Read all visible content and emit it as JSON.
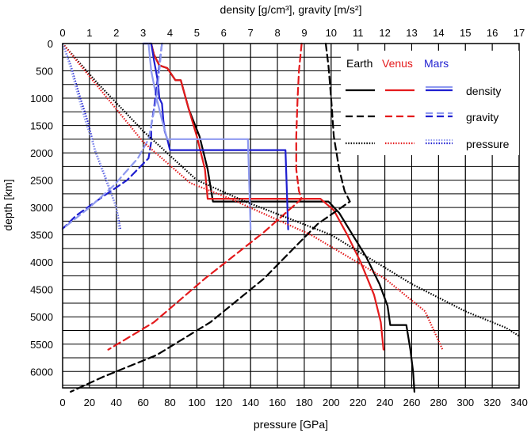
{
  "chart_data": {
    "type": "line",
    "top_axis_label": "density [g/cm³], gravity [m/s²]",
    "bottom_axis_label": "pressure [GPa]",
    "left_axis_label": "depth [km]",
    "top_axis": {
      "range": [
        0,
        17
      ],
      "ticks": [
        "0",
        "1",
        "2",
        "3",
        "4",
        "5",
        "6",
        "7",
        "8",
        "9",
        "10",
        "11",
        "12",
        "13",
        "14",
        "15",
        "16",
        "17"
      ]
    },
    "bottom_axis": {
      "range": [
        0,
        340
      ],
      "ticks": [
        "0",
        "20",
        "40",
        "60",
        "80",
        "100",
        "120",
        "140",
        "160",
        "180",
        "200",
        "220",
        "240",
        "260",
        "280",
        "300",
        "320",
        "340"
      ]
    },
    "left_axis": {
      "range": [
        0,
        6300
      ],
      "inverted": true,
      "ticks": [
        "0",
        "500",
        "1000",
        "1500",
        "2000",
        "2500",
        "3000",
        "3500",
        "4000",
        "4500",
        "5000",
        "5500",
        "6000"
      ]
    },
    "grid": true,
    "legend": {
      "placement": "top-right",
      "planets": [
        {
          "name": "Earth",
          "color": "#000000"
        },
        {
          "name": "Venus",
          "color": "#e41a1c"
        },
        {
          "name": "Mars",
          "color": "#1f1fd0"
        }
      ],
      "rows": [
        {
          "label": "density",
          "style": "solid"
        },
        {
          "label": "gravity",
          "style": "dashed"
        },
        {
          "label": "pressure",
          "style": "dotted"
        }
      ]
    },
    "series": [
      {
        "planet": "Earth",
        "quantity": "density",
        "axis": "top",
        "style": "solid",
        "color": "#000000",
        "points": [
          [
            3.3,
            0
          ],
          [
            3.4,
            200
          ],
          [
            3.6,
            400
          ],
          [
            3.9,
            450
          ],
          [
            4.2,
            670
          ],
          [
            4.4,
            670
          ],
          [
            4.7,
            1200
          ],
          [
            5.1,
            1700
          ],
          [
            5.4,
            2300
          ],
          [
            5.6,
            2891
          ],
          [
            9.9,
            2891
          ],
          [
            10.3,
            3100
          ],
          [
            10.8,
            3500
          ],
          [
            11.3,
            3900
          ],
          [
            11.8,
            4400
          ],
          [
            12.1,
            4800
          ],
          [
            12.2,
            5150
          ],
          [
            12.8,
            5150
          ],
          [
            12.95,
            5600
          ],
          [
            13.05,
            6000
          ],
          [
            13.1,
            6371
          ]
        ]
      },
      {
        "planet": "Venus",
        "quantity": "density",
        "axis": "top",
        "style": "solid",
        "color": "#e41a1c",
        "points": [
          [
            3.3,
            0
          ],
          [
            3.4,
            200
          ],
          [
            3.6,
            400
          ],
          [
            3.9,
            450
          ],
          [
            4.2,
            670
          ],
          [
            4.4,
            670
          ],
          [
            4.7,
            1200
          ],
          [
            5.0,
            1700
          ],
          [
            5.3,
            2300
          ],
          [
            5.4,
            2840
          ],
          [
            9.6,
            2840
          ],
          [
            10.1,
            3050
          ],
          [
            10.6,
            3500
          ],
          [
            11.1,
            4000
          ],
          [
            11.6,
            4600
          ],
          [
            11.85,
            5100
          ],
          [
            11.95,
            5600
          ]
        ]
      },
      {
        "planet": "Mars",
        "quantity": "density",
        "axis": "top",
        "style": "solid",
        "color": "#1f1fd0",
        "points": [
          [
            3.0,
            0
          ],
          [
            3.3,
            0
          ],
          [
            3.4,
            300
          ],
          [
            3.55,
            700
          ],
          [
            3.6,
            1000
          ],
          [
            3.7,
            1100
          ],
          [
            3.75,
            1400
          ],
          [
            3.8,
            1600
          ],
          [
            3.9,
            1750
          ],
          [
            4.0,
            1950
          ],
          [
            8.3,
            1950
          ],
          [
            8.4,
            3400
          ]
        ]
      },
      {
        "planet": "Mars",
        "quantity": "density (second model)",
        "axis": "top",
        "style": "solid",
        "color": "#8f9af0",
        "points": [
          [
            3.2,
            0
          ],
          [
            3.3,
            500
          ],
          [
            3.5,
            1000
          ],
          [
            3.7,
            1400
          ],
          [
            3.9,
            1750
          ],
          [
            6.9,
            1750
          ],
          [
            7.0,
            3400
          ]
        ]
      },
      {
        "planet": "Earth",
        "quantity": "gravity",
        "axis": "top",
        "style": "dashed",
        "color": "#000000",
        "points": [
          [
            9.8,
            0
          ],
          [
            9.9,
            400
          ],
          [
            10.0,
            1000
          ],
          [
            10.1,
            1700
          ],
          [
            10.3,
            2300
          ],
          [
            10.5,
            2700
          ],
          [
            10.7,
            2891
          ],
          [
            9.5,
            3300
          ],
          [
            7.5,
            4300
          ],
          [
            5.5,
            5100
          ],
          [
            3.5,
            5700
          ],
          [
            1.5,
            6100
          ],
          [
            0.3,
            6371
          ]
        ]
      },
      {
        "planet": "Venus",
        "quantity": "gravity",
        "axis": "top",
        "style": "dashed",
        "color": "#e41a1c",
        "points": [
          [
            8.9,
            0
          ],
          [
            8.8,
            500
          ],
          [
            8.75,
            1000
          ],
          [
            8.7,
            1700
          ],
          [
            8.7,
            2300
          ],
          [
            8.8,
            2700
          ],
          [
            8.9,
            2840
          ],
          [
            7.5,
            3450
          ],
          [
            5.3,
            4300
          ],
          [
            3.4,
            5100
          ],
          [
            1.7,
            5600
          ]
        ]
      },
      {
        "planet": "Mars",
        "quantity": "gravity",
        "axis": "top",
        "style": "dashed",
        "color": "#1f1fd0",
        "points": [
          [
            3.7,
            0
          ],
          [
            3.6,
            400
          ],
          [
            3.5,
            800
          ],
          [
            3.4,
            1200
          ],
          [
            3.3,
            1500
          ],
          [
            3.3,
            1800
          ],
          [
            3.2,
            2100
          ],
          [
            2.4,
            2500
          ],
          [
            1.5,
            2800
          ],
          [
            0.5,
            3150
          ],
          [
            0,
            3390
          ]
        ]
      },
      {
        "planet": "Mars",
        "quantity": "gravity (second model)",
        "axis": "top",
        "style": "dashed",
        "color": "#8f9af0",
        "points": [
          [
            3.7,
            0
          ],
          [
            3.6,
            500
          ],
          [
            3.5,
            1000
          ],
          [
            3.3,
            1500
          ],
          [
            3.2,
            1750
          ],
          [
            2.8,
            2100
          ],
          [
            1.9,
            2600
          ],
          [
            1.0,
            3000
          ],
          [
            0,
            3390
          ]
        ]
      },
      {
        "planet": "Earth",
        "quantity": "pressure",
        "axis": "bottom",
        "style": "dotted",
        "color": "#000000",
        "points": [
          [
            0,
            0
          ],
          [
            25,
            700
          ],
          [
            60,
            1600
          ],
          [
            100,
            2500
          ],
          [
            136,
            2891
          ],
          [
            200,
            3500
          ],
          [
            260,
            4400
          ],
          [
            300,
            4900
          ],
          [
            330,
            5200
          ],
          [
            340,
            5350
          ]
        ]
      },
      {
        "planet": "Venus",
        "quantity": "pressure",
        "axis": "bottom",
        "style": "dotted",
        "color": "#e41a1c",
        "points": [
          [
            0,
            0
          ],
          [
            25,
            750
          ],
          [
            60,
            1800
          ],
          [
            95,
            2550
          ],
          [
            125,
            2840
          ],
          [
            185,
            3500
          ],
          [
            240,
            4300
          ],
          [
            270,
            4900
          ],
          [
            283,
            5600
          ]
        ]
      },
      {
        "planet": "Mars",
        "quantity": "pressure",
        "axis": "bottom",
        "style": "dotted",
        "color": "#1f1fd0",
        "points": [
          [
            0,
            0
          ],
          [
            6,
            400
          ],
          [
            12,
            900
          ],
          [
            19,
            1450
          ],
          [
            24,
            1950
          ],
          [
            34,
            2600
          ],
          [
            40,
            3000
          ],
          [
            43,
            3390
          ]
        ]
      },
      {
        "planet": "Mars",
        "quantity": "pressure (second model)",
        "axis": "bottom",
        "style": "dotted",
        "color": "#8f9af0",
        "points": [
          [
            0,
            0
          ],
          [
            6,
            450
          ],
          [
            12,
            1000
          ],
          [
            18,
            1500
          ],
          [
            25,
            2000
          ],
          [
            33,
            2500
          ],
          [
            40,
            3000
          ],
          [
            42,
            3390
          ]
        ]
      }
    ]
  }
}
